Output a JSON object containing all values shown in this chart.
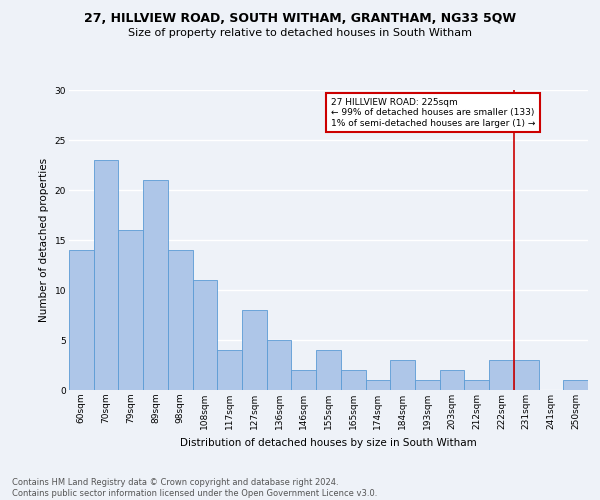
{
  "title": "27, HILLVIEW ROAD, SOUTH WITHAM, GRANTHAM, NG33 5QW",
  "subtitle": "Size of property relative to detached houses in South Witham",
  "xlabel": "Distribution of detached houses by size in South Witham",
  "ylabel": "Number of detached properties",
  "categories": [
    "60sqm",
    "70sqm",
    "79sqm",
    "89sqm",
    "98sqm",
    "108sqm",
    "117sqm",
    "127sqm",
    "136sqm",
    "146sqm",
    "155sqm",
    "165sqm",
    "174sqm",
    "184sqm",
    "193sqm",
    "203sqm",
    "212sqm",
    "222sqm",
    "231sqm",
    "241sqm",
    "250sqm"
  ],
  "values": [
    14,
    23,
    16,
    21,
    14,
    11,
    4,
    8,
    5,
    2,
    4,
    2,
    1,
    3,
    1,
    2,
    1,
    3,
    3,
    0,
    1
  ],
  "bar_color": "#aec6e8",
  "bar_edge_color": "#5b9bd5",
  "property_line_label": "27 HILLVIEW ROAD: 225sqm",
  "annotation_line1": "← 99% of detached houses are smaller (133)",
  "annotation_line2": "1% of semi-detached houses are larger (1) →",
  "annotation_box_color": "#ffffff",
  "annotation_box_edge_color": "#cc0000",
  "vline_color": "#cc0000",
  "background_color": "#eef2f8",
  "grid_color": "#ffffff",
  "ylim": [
    0,
    30
  ],
  "yticks": [
    0,
    5,
    10,
    15,
    20,
    25,
    30
  ],
  "title_fontsize": 9,
  "subtitle_fontsize": 8,
  "axis_label_fontsize": 7.5,
  "tick_fontsize": 6.5,
  "annotation_fontsize": 6.5,
  "footer_fontsize": 6,
  "footer_line1": "Contains HM Land Registry data © Crown copyright and database right 2024.",
  "footer_line2": "Contains public sector information licensed under the Open Government Licence v3.0."
}
